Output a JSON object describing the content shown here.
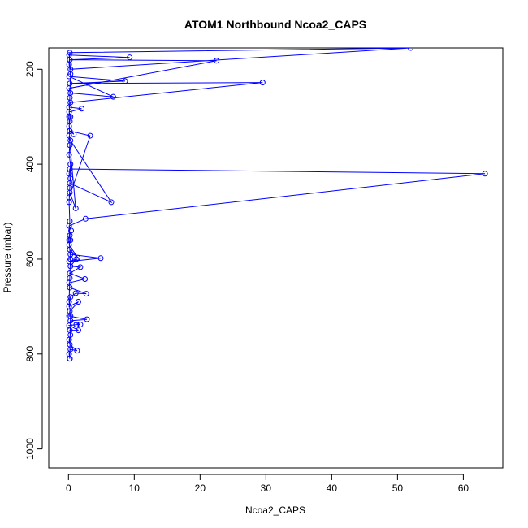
{
  "chart_data": {
    "type": "line",
    "title": "ATOM1 Northbound Ncoa2_CAPS",
    "xlabel": "Ncoa2_CAPS",
    "ylabel": "Pressure (mbar)",
    "xlim": [
      -3,
      66
    ],
    "ylim": [
      1040,
      155
    ],
    "y_reversed": true,
    "xticks": [
      0,
      10,
      20,
      30,
      40,
      50,
      60
    ],
    "yticks": [
      200,
      400,
      600,
      800,
      1000
    ],
    "grid": false,
    "legend": "none",
    "series": [
      {
        "color": "#0000ff",
        "marker": "open-circle",
        "points": [
          [
            0.2,
            810
          ],
          [
            0.1,
            800
          ],
          [
            0.3,
            790
          ],
          [
            1.3,
            793
          ],
          [
            0.2,
            780
          ],
          [
            0.1,
            770
          ],
          [
            0.3,
            760
          ],
          [
            0.2,
            750
          ],
          [
            1.5,
            750
          ],
          [
            0.1,
            740
          ],
          [
            1.2,
            738
          ],
          [
            1.8,
            738
          ],
          [
            0.3,
            730
          ],
          [
            2.8,
            727
          ],
          [
            0.1,
            720
          ],
          [
            0.2,
            710
          ],
          [
            1.5,
            690
          ],
          [
            0.1,
            700
          ],
          [
            0.3,
            680
          ],
          [
            1.1,
            672
          ],
          [
            2.7,
            673
          ],
          [
            0.2,
            660
          ],
          [
            0.1,
            650
          ],
          [
            2.5,
            642
          ],
          [
            0.2,
            630
          ],
          [
            1.8,
            617
          ],
          [
            0.3,
            615
          ],
          [
            1.2,
            600
          ],
          [
            0.1,
            605
          ],
          [
            4.9,
            598
          ],
          [
            0.3,
            590
          ],
          [
            0.2,
            580
          ],
          [
            1.4,
            597
          ],
          [
            0.1,
            570
          ],
          [
            0.3,
            560
          ],
          [
            0.2,
            550
          ],
          [
            0.4,
            540
          ],
          [
            0.1,
            530
          ],
          [
            2.6,
            515
          ],
          [
            63.3,
            420
          ],
          [
            0.2,
            410
          ],
          [
            0.1,
            420
          ],
          [
            0.3,
            430
          ],
          [
            0.2,
            440
          ],
          [
            6.5,
            480
          ],
          [
            0.3,
            350
          ],
          [
            0.1,
            340
          ],
          [
            1.1,
            493
          ],
          [
            0.2,
            460
          ],
          [
            0.1,
            470
          ],
          [
            3.3,
            340
          ],
          [
            0.2,
            330
          ],
          [
            0.8,
            337
          ],
          [
            0.1,
            320
          ],
          [
            0.2,
            310
          ],
          [
            0.3,
            300
          ],
          [
            0.1,
            290
          ],
          [
            2.0,
            283
          ],
          [
            0.1,
            280
          ],
          [
            0.3,
            270
          ],
          [
            29.5,
            228
          ],
          [
            0.2,
            230
          ],
          [
            8.6,
            225
          ],
          [
            0.1,
            215
          ],
          [
            6.8,
            258
          ],
          [
            0.3,
            250
          ],
          [
            0.1,
            240
          ],
          [
            22.5,
            182
          ],
          [
            0.2,
            180
          ],
          [
            9.3,
            175
          ],
          [
            0.1,
            170
          ],
          [
            0.3,
            200
          ],
          [
            52.0,
            155
          ],
          [
            0.2,
            165
          ],
          [
            0.1,
            190
          ],
          [
            0.3,
            210
          ],
          [
            0.2,
            260
          ],
          [
            0.1,
            300
          ],
          [
            0.2,
            360
          ],
          [
            0.1,
            380
          ],
          [
            0.3,
            400
          ],
          [
            0.2,
            450
          ],
          [
            0.1,
            480
          ],
          [
            0.2,
            520
          ],
          [
            0.1,
            560
          ],
          [
            0.3,
            600
          ],
          [
            0.2,
            640
          ],
          [
            0.1,
            690
          ],
          [
            0.3,
            720
          ],
          [
            0.2,
            810
          ]
        ]
      }
    ]
  }
}
